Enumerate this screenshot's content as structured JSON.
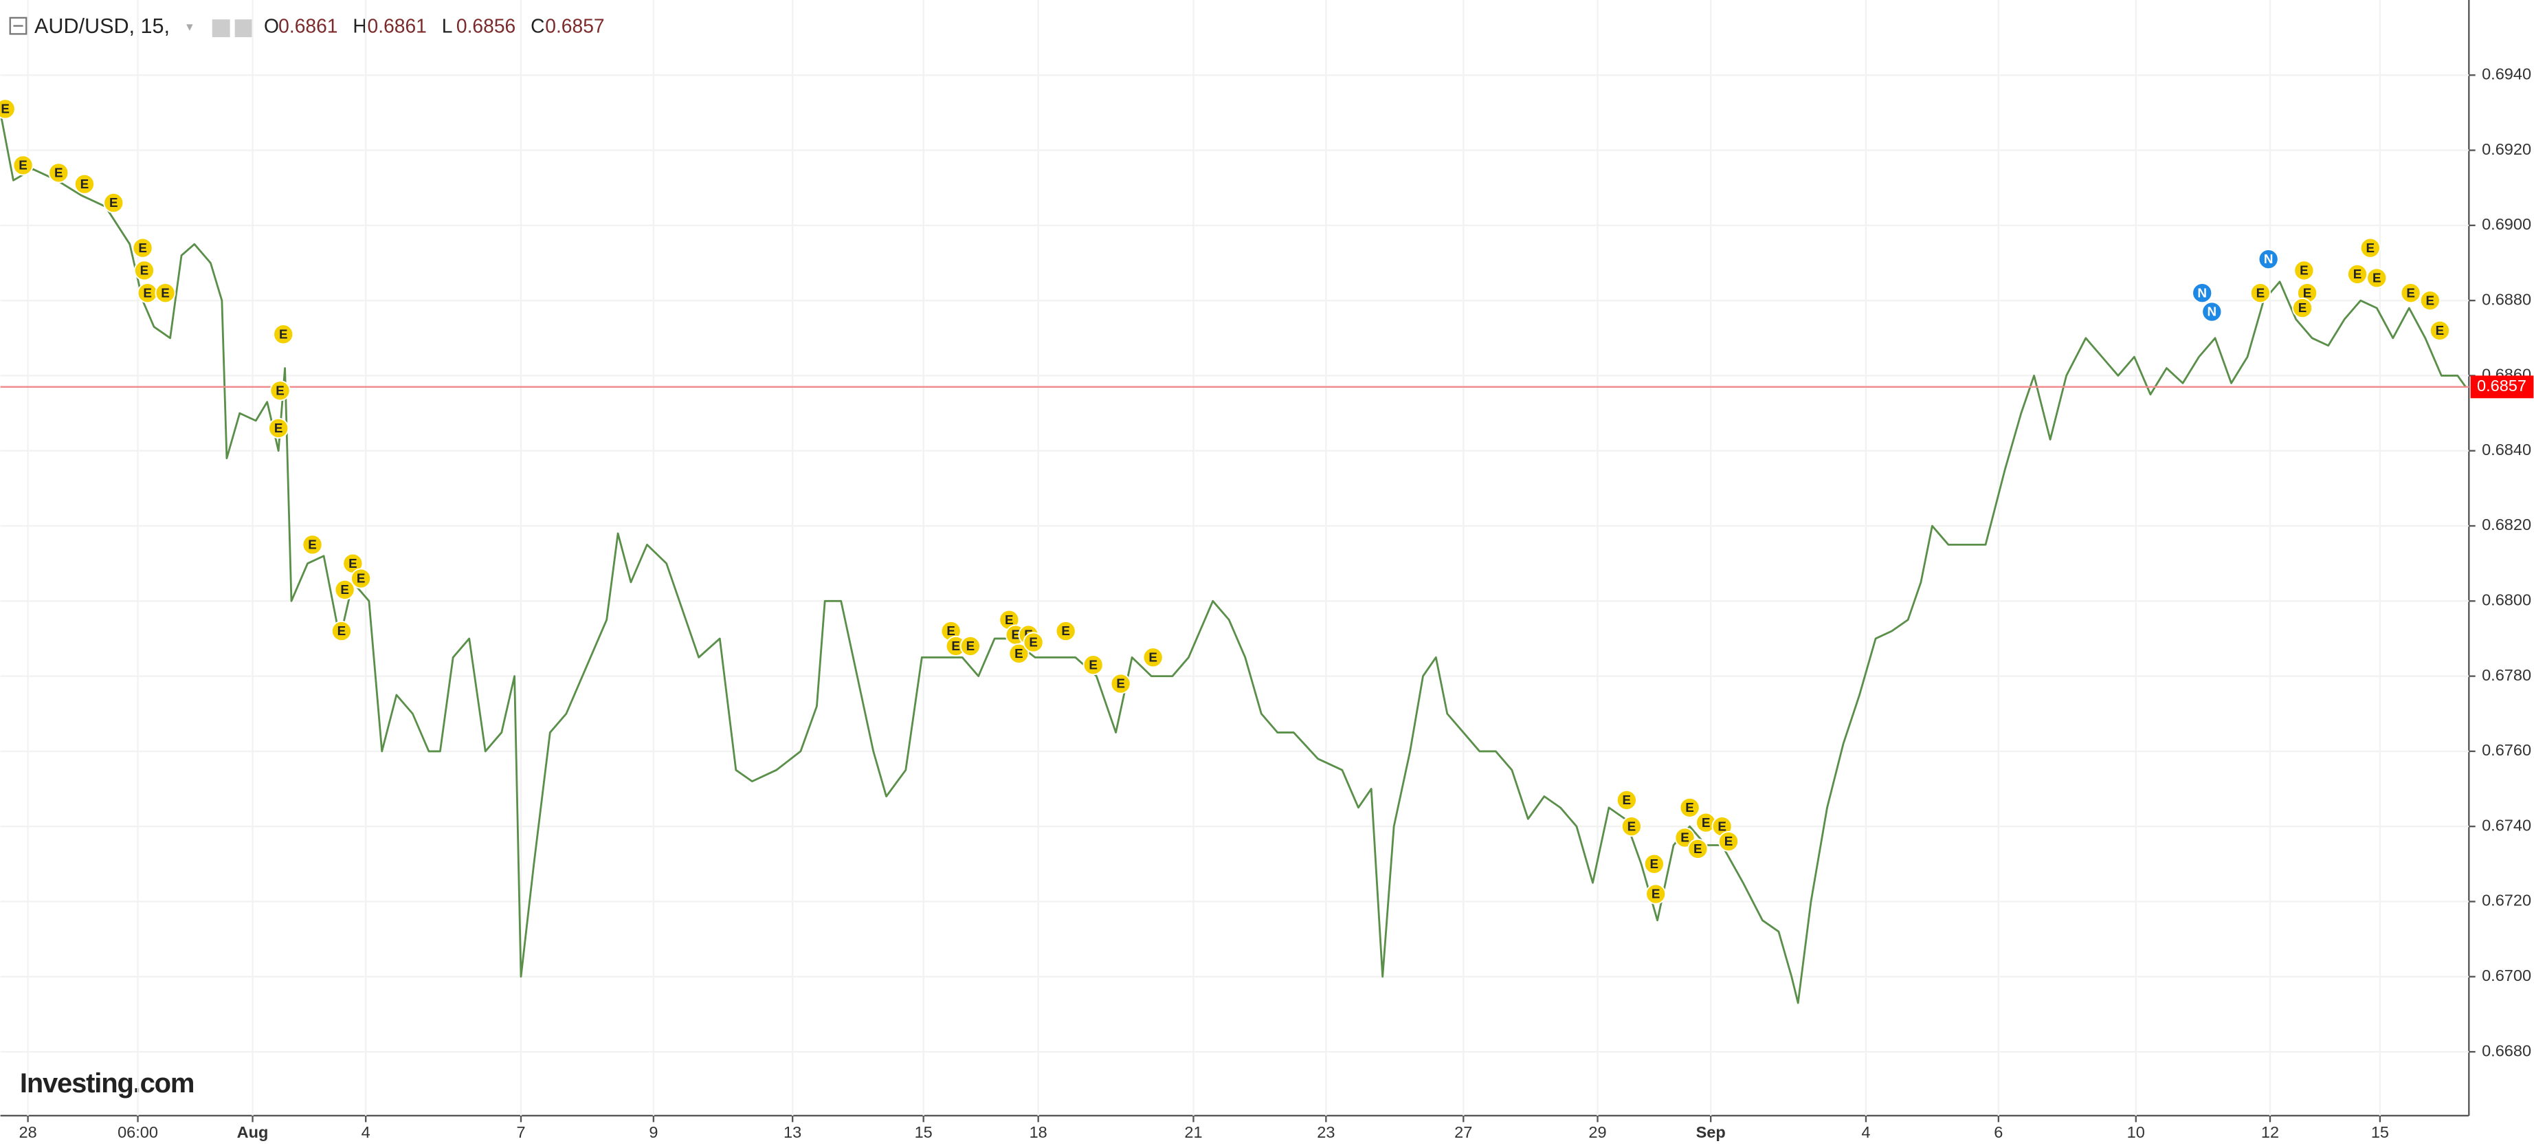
{
  "chart_data": {
    "type": "line",
    "title": "AUD/USD, 15,",
    "ohlc": [
      {
        "label": "O",
        "value": 0.6861
      },
      {
        "label": "H",
        "value": 0.6861
      },
      {
        "label": "L",
        "value": 0.6856
      },
      {
        "label": "C",
        "value": 0.6857
      }
    ],
    "last_price": 0.6857,
    "watermark": "Investing.com",
    "xlim": [
      0,
      1527
    ],
    "ylim": [
      0.6663,
      0.696
    ],
    "xticks": [
      {
        "value": 17,
        "label": "28"
      },
      {
        "value": 85,
        "label": "06:00"
      },
      {
        "value": 156,
        "label": "Aug"
      },
      {
        "value": 226,
        "label": "4"
      },
      {
        "value": 322,
        "label": "7"
      },
      {
        "value": 404,
        "label": "9"
      },
      {
        "value": 490,
        "label": "13"
      },
      {
        "value": 571,
        "label": "15"
      },
      {
        "value": 642,
        "label": "18"
      },
      {
        "value": 738,
        "label": "21"
      },
      {
        "value": 820,
        "label": "23"
      },
      {
        "value": 905,
        "label": "27"
      },
      {
        "value": 988,
        "label": "29"
      },
      {
        "value": 1058,
        "label": "Sep"
      },
      {
        "value": 1154,
        "label": "4"
      },
      {
        "value": 1236,
        "label": "6"
      },
      {
        "value": 1321,
        "label": "10"
      },
      {
        "value": 1404,
        "label": "12"
      },
      {
        "value": 1472,
        "label": "15"
      }
    ],
    "yticks": [
      {
        "value": 0.694,
        "label": "0.6940"
      },
      {
        "value": 0.692,
        "label": "0.6920"
      },
      {
        "value": 0.69,
        "label": "0.6900"
      },
      {
        "value": 0.688,
        "label": "0.6880"
      },
      {
        "value": 0.686,
        "label": "0.6860"
      },
      {
        "value": 0.684,
        "label": "0.6840"
      },
      {
        "value": 0.682,
        "label": "0.6820"
      },
      {
        "value": 0.68,
        "label": "0.6800"
      },
      {
        "value": 0.678,
        "label": "0.6780"
      },
      {
        "value": 0.676,
        "label": "0.6760"
      },
      {
        "value": 0.674,
        "label": "0.6740"
      },
      {
        "value": 0.672,
        "label": "0.6720"
      },
      {
        "value": 0.67,
        "label": "0.6700"
      },
      {
        "value": 0.668,
        "label": "0.6680"
      }
    ],
    "grid": true,
    "x": [
      0,
      8,
      20,
      35,
      50,
      65,
      80,
      88,
      95,
      105,
      112,
      120,
      130,
      137,
      140,
      148,
      158,
      165,
      172,
      176,
      180,
      190,
      200,
      210,
      218,
      228,
      236,
      245,
      255,
      265,
      272,
      280,
      290,
      300,
      310,
      318,
      322,
      330,
      340,
      350,
      365,
      375,
      382,
      390,
      400,
      412,
      420,
      432,
      445,
      455,
      465,
      480,
      495,
      505,
      510,
      520,
      530,
      540,
      548,
      560,
      570,
      582,
      595,
      605,
      615,
      625,
      640,
      655,
      665,
      678,
      690,
      700,
      712,
      725,
      735,
      750,
      760,
      770,
      780,
      790,
      800,
      815,
      830,
      840,
      848,
      855,
      862,
      872,
      880,
      888,
      895,
      905,
      915,
      925,
      935,
      945,
      955,
      965,
      975,
      985,
      995,
      1005,
      1015,
      1025,
      1035,
      1045,
      1055,
      1065,
      1078,
      1090,
      1100,
      1108,
      1112,
      1120,
      1130,
      1140,
      1150,
      1160,
      1170,
      1180,
      1188,
      1195,
      1205,
      1215,
      1228,
      1240,
      1250,
      1258,
      1268,
      1278,
      1290,
      1300,
      1310,
      1320,
      1330,
      1340,
      1350,
      1360,
      1370,
      1380,
      1390,
      1400,
      1410,
      1420,
      1430,
      1440,
      1450,
      1460,
      1470,
      1480,
      1490,
      1500,
      1510,
      1520,
      1525
    ],
    "series": [
      {
        "name": "AUD/USD",
        "color": "#5a8f4a",
        "values": [
          0.693,
          0.6912,
          0.6915,
          0.6912,
          0.6908,
          0.6905,
          0.6895,
          0.688,
          0.6873,
          0.687,
          0.6892,
          0.6895,
          0.689,
          0.688,
          0.6838,
          0.685,
          0.6848,
          0.6853,
          0.684,
          0.6862,
          0.68,
          0.681,
          0.6812,
          0.679,
          0.6805,
          0.68,
          0.676,
          0.6775,
          0.677,
          0.676,
          0.676,
          0.6785,
          0.679,
          0.676,
          0.6765,
          0.678,
          0.67,
          0.673,
          0.6765,
          0.677,
          0.6785,
          0.6795,
          0.6818,
          0.6805,
          0.6815,
          0.681,
          0.68,
          0.6785,
          0.679,
          0.6755,
          0.6752,
          0.6755,
          0.676,
          0.6772,
          0.68,
          0.68,
          0.678,
          0.676,
          0.6748,
          0.6755,
          0.6785,
          0.6785,
          0.6785,
          0.678,
          0.679,
          0.679,
          0.6785,
          0.6785,
          0.6785,
          0.678,
          0.6765,
          0.6785,
          0.678,
          0.678,
          0.6785,
          0.68,
          0.6795,
          0.6785,
          0.677,
          0.6765,
          0.6765,
          0.6758,
          0.6755,
          0.6745,
          0.675,
          0.67,
          0.674,
          0.676,
          0.678,
          0.6785,
          0.677,
          0.6765,
          0.676,
          0.676,
          0.6755,
          0.6742,
          0.6748,
          0.6745,
          0.674,
          0.6725,
          0.6745,
          0.6742,
          0.673,
          0.6715,
          0.6735,
          0.674,
          0.6735,
          0.6735,
          0.6725,
          0.6715,
          0.6712,
          0.67,
          0.6693,
          0.672,
          0.6745,
          0.6762,
          0.6775,
          0.679,
          0.6792,
          0.6795,
          0.6805,
          0.682,
          0.6815,
          0.6815,
          0.6815,
          0.6835,
          0.685,
          0.686,
          0.6843,
          0.686,
          0.687,
          0.6865,
          0.686,
          0.6865,
          0.6855,
          0.6862,
          0.6858,
          0.6865,
          0.687,
          0.6858,
          0.6865,
          0.688,
          0.6885,
          0.6875,
          0.687,
          0.6868,
          0.6875,
          0.688,
          0.6878,
          0.687,
          0.6878,
          0.687,
          0.686,
          0.686,
          0.6857
        ]
      }
    ],
    "events": [
      {
        "label": "E",
        "x": 3,
        "value": 0.6931
      },
      {
        "label": "E",
        "x": 14,
        "value": 0.6916
      },
      {
        "label": "E",
        "x": 36,
        "value": 0.6914
      },
      {
        "label": "E",
        "x": 52,
        "value": 0.6911
      },
      {
        "label": "E",
        "x": 70,
        "value": 0.6906
      },
      {
        "label": "E",
        "x": 88,
        "value": 0.6894
      },
      {
        "label": "E",
        "x": 89,
        "value": 0.6888
      },
      {
        "label": "E",
        "x": 91,
        "value": 0.6882
      },
      {
        "label": "E",
        "x": 102,
        "value": 0.6882
      },
      {
        "label": "E",
        "x": 175,
        "value": 0.6871
      },
      {
        "label": "E",
        "x": 173,
        "value": 0.6856
      },
      {
        "label": "E",
        "x": 172,
        "value": 0.6846
      },
      {
        "label": "E",
        "x": 193,
        "value": 0.6815
      },
      {
        "label": "E",
        "x": 218,
        "value": 0.681
      },
      {
        "label": "E",
        "x": 223,
        "value": 0.6806
      },
      {
        "label": "E",
        "x": 213,
        "value": 0.6803
      },
      {
        "label": "E",
        "x": 211,
        "value": 0.6792
      },
      {
        "label": "E",
        "x": 588,
        "value": 0.6792
      },
      {
        "label": "E",
        "x": 591,
        "value": 0.6788
      },
      {
        "label": "E",
        "x": 600,
        "value": 0.6788
      },
      {
        "label": "E",
        "x": 624,
        "value": 0.6795
      },
      {
        "label": "E",
        "x": 628,
        "value": 0.6791
      },
      {
        "label": "E",
        "x": 636,
        "value": 0.6791
      },
      {
        "label": "E",
        "x": 630,
        "value": 0.6786
      },
      {
        "label": "E",
        "x": 639,
        "value": 0.6789
      },
      {
        "label": "E",
        "x": 659,
        "value": 0.6792
      },
      {
        "label": "E",
        "x": 676,
        "value": 0.6783
      },
      {
        "label": "E",
        "x": 693,
        "value": 0.6778
      },
      {
        "label": "E",
        "x": 713,
        "value": 0.6785
      },
      {
        "label": "E",
        "x": 1006,
        "value": 0.6747
      },
      {
        "label": "E",
        "x": 1009,
        "value": 0.674
      },
      {
        "label": "E",
        "x": 1023,
        "value": 0.673
      },
      {
        "label": "E",
        "x": 1024,
        "value": 0.6722
      },
      {
        "label": "E",
        "x": 1045,
        "value": 0.6745
      },
      {
        "label": "E",
        "x": 1042,
        "value": 0.6737
      },
      {
        "label": "E",
        "x": 1055,
        "value": 0.6741
      },
      {
        "label": "E",
        "x": 1065,
        "value": 0.674
      },
      {
        "label": "E",
        "x": 1050,
        "value": 0.6734
      },
      {
        "label": "E",
        "x": 1069,
        "value": 0.6736
      },
      {
        "label": "N",
        "x": 1362,
        "value": 0.6882
      },
      {
        "label": "N",
        "x": 1368,
        "value": 0.6877
      },
      {
        "label": "N",
        "x": 1403,
        "value": 0.6891
      },
      {
        "label": "E",
        "x": 1398,
        "value": 0.6882
      },
      {
        "label": "E",
        "x": 1425,
        "value": 0.6888
      },
      {
        "label": "E",
        "x": 1427,
        "value": 0.6882
      },
      {
        "label": "E",
        "x": 1424,
        "value": 0.6878
      },
      {
        "label": "E",
        "x": 1458,
        "value": 0.6887
      },
      {
        "label": "E",
        "x": 1470,
        "value": 0.6886
      },
      {
        "label": "E",
        "x": 1466,
        "value": 0.6894
      },
      {
        "label": "E",
        "x": 1491,
        "value": 0.6882
      },
      {
        "label": "E",
        "x": 1503,
        "value": 0.688
      },
      {
        "label": "E",
        "x": 1509,
        "value": 0.6872
      }
    ]
  }
}
